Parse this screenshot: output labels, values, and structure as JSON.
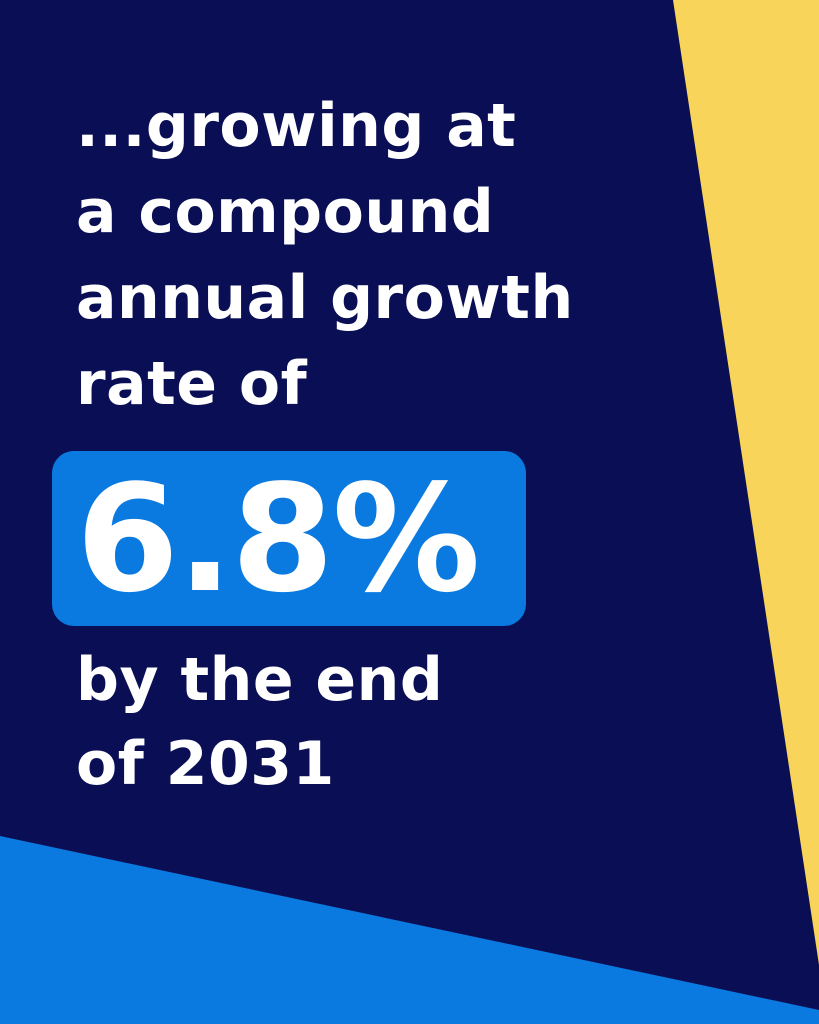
{
  "colors": {
    "background": "#0a0f55",
    "yellow_accent": "#f8d55a",
    "blue_accent": "#0a7ae0",
    "highlight_box": "#0a7ae0",
    "text": "#ffffff"
  },
  "headline": {
    "line1": "...growing at",
    "line2": "a compound",
    "line3": "annual growth",
    "line4": "rate of"
  },
  "stat": {
    "value": "6.8%"
  },
  "footer_text": {
    "line1": "by the end",
    "line2": "of 2031"
  }
}
